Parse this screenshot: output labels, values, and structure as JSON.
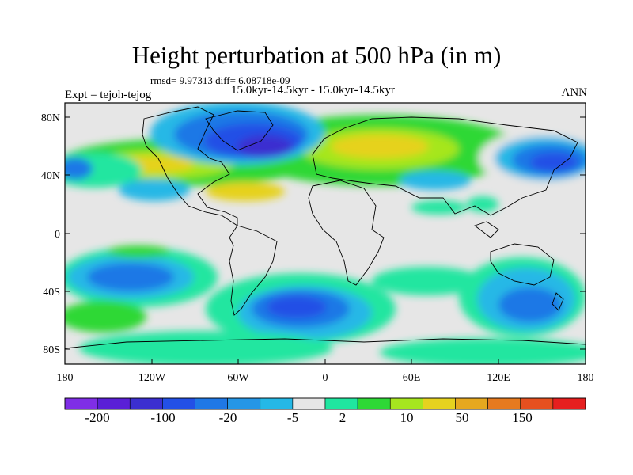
{
  "title": "Height perturbation at 500 hPa (in m)",
  "stats": "rmsd= 9.97313 diff= 6.08718e-09",
  "period": "15.0kyr-14.5kyr - 15.0kyr-14.5kyr",
  "experiment": "Expt = tejoh-tejog",
  "season": "ANN",
  "map": {
    "lat_labels": [
      "80N",
      "40N",
      "0",
      "40S",
      "80S"
    ],
    "lon_labels": [
      "180",
      "120W",
      "60W",
      "0",
      "60E",
      "120E",
      "180"
    ],
    "ocean_color": "#e6e6e6"
  },
  "colorbar": {
    "colors": [
      "#7f2ee6",
      "#5a1fd6",
      "#3b2fd0",
      "#2350e6",
      "#1f78e6",
      "#2596e6",
      "#25b8e6",
      "#e6e6e6",
      "#20e6a0",
      "#2ed836",
      "#a6e61f",
      "#e6d21f",
      "#e6a81f",
      "#e67a1f",
      "#e6501f",
      "#e61f1f"
    ],
    "labels": [
      "-200",
      "-100",
      "-20",
      "-5",
      "2",
      "10",
      "50",
      "150"
    ]
  }
}
